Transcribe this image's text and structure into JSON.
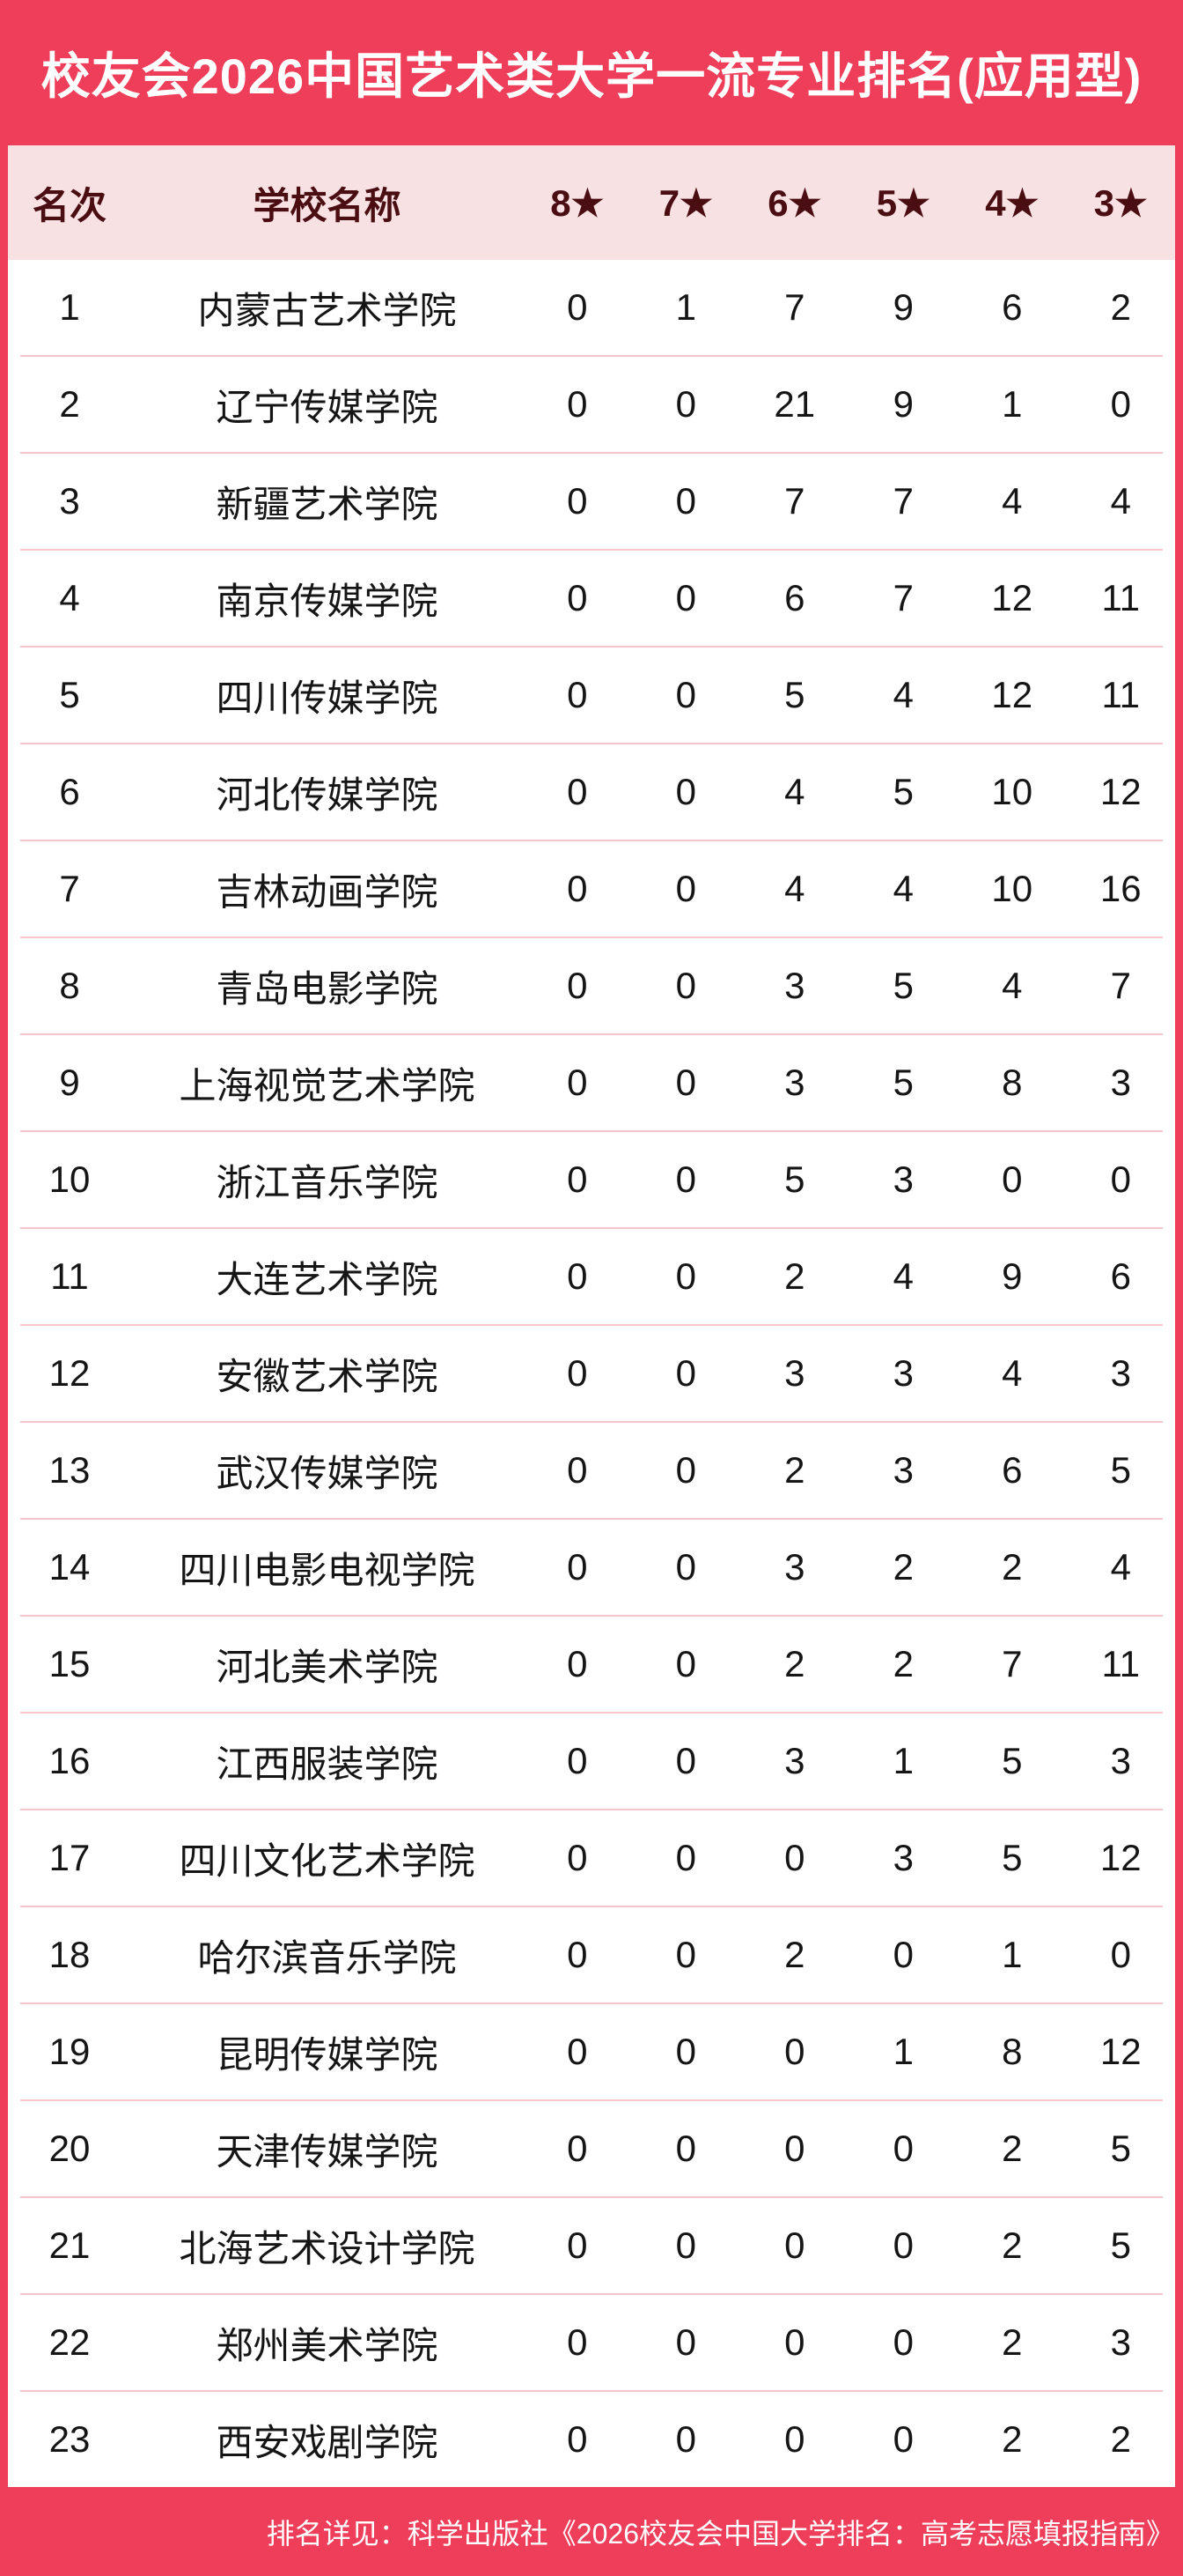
{
  "title": "校友会2026中国艺术类大学一流专业排名(应用型)",
  "colors": {
    "accent_red": "#ee3e5a",
    "header_pink": "#f8e1e3",
    "separator_pink": "#f6c6cd",
    "header_text_maroon": "#4a0d12",
    "body_text": "#151515",
    "title_text": "#ffffff"
  },
  "table": {
    "columns": [
      "名次",
      "学校名称",
      "8★",
      "7★",
      "6★",
      "5★",
      "4★",
      "3★"
    ],
    "rows": [
      {
        "rank": "1",
        "school": "内蒙古艺术学院",
        "stars": [
          "0",
          "1",
          "7",
          "9",
          "6",
          "2"
        ]
      },
      {
        "rank": "2",
        "school": "辽宁传媒学院",
        "stars": [
          "0",
          "0",
          "21",
          "9",
          "1",
          "0"
        ]
      },
      {
        "rank": "3",
        "school": "新疆艺术学院",
        "stars": [
          "0",
          "0",
          "7",
          "7",
          "4",
          "4"
        ]
      },
      {
        "rank": "4",
        "school": "南京传媒学院",
        "stars": [
          "0",
          "0",
          "6",
          "7",
          "12",
          "11"
        ]
      },
      {
        "rank": "5",
        "school": "四川传媒学院",
        "stars": [
          "0",
          "0",
          "5",
          "4",
          "12",
          "11"
        ]
      },
      {
        "rank": "6",
        "school": "河北传媒学院",
        "stars": [
          "0",
          "0",
          "4",
          "5",
          "10",
          "12"
        ]
      },
      {
        "rank": "7",
        "school": "吉林动画学院",
        "stars": [
          "0",
          "0",
          "4",
          "4",
          "10",
          "16"
        ]
      },
      {
        "rank": "8",
        "school": "青岛电影学院",
        "stars": [
          "0",
          "0",
          "3",
          "5",
          "4",
          "7"
        ]
      },
      {
        "rank": "9",
        "school": "上海视觉艺术学院",
        "stars": [
          "0",
          "0",
          "3",
          "5",
          "8",
          "3"
        ]
      },
      {
        "rank": "10",
        "school": "浙江音乐学院",
        "stars": [
          "0",
          "0",
          "5",
          "3",
          "0",
          "0"
        ]
      },
      {
        "rank": "11",
        "school": "大连艺术学院",
        "stars": [
          "0",
          "0",
          "2",
          "4",
          "9",
          "6"
        ]
      },
      {
        "rank": "12",
        "school": "安徽艺术学院",
        "stars": [
          "0",
          "0",
          "3",
          "3",
          "4",
          "3"
        ]
      },
      {
        "rank": "13",
        "school": "武汉传媒学院",
        "stars": [
          "0",
          "0",
          "2",
          "3",
          "6",
          "5"
        ]
      },
      {
        "rank": "14",
        "school": "四川电影电视学院",
        "stars": [
          "0",
          "0",
          "3",
          "2",
          "2",
          "4"
        ]
      },
      {
        "rank": "15",
        "school": "河北美术学院",
        "stars": [
          "0",
          "0",
          "2",
          "2",
          "7",
          "11"
        ]
      },
      {
        "rank": "16",
        "school": "江西服装学院",
        "stars": [
          "0",
          "0",
          "3",
          "1",
          "5",
          "3"
        ]
      },
      {
        "rank": "17",
        "school": "四川文化艺术学院",
        "stars": [
          "0",
          "0",
          "0",
          "3",
          "5",
          "12"
        ]
      },
      {
        "rank": "18",
        "school": "哈尔滨音乐学院",
        "stars": [
          "0",
          "0",
          "2",
          "0",
          "1",
          "0"
        ]
      },
      {
        "rank": "19",
        "school": "昆明传媒学院",
        "stars": [
          "0",
          "0",
          "0",
          "1",
          "8",
          "12"
        ]
      },
      {
        "rank": "20",
        "school": "天津传媒学院",
        "stars": [
          "0",
          "0",
          "0",
          "0",
          "2",
          "5"
        ]
      },
      {
        "rank": "21",
        "school": "北海艺术设计学院",
        "stars": [
          "0",
          "0",
          "0",
          "0",
          "2",
          "5"
        ]
      },
      {
        "rank": "22",
        "school": "郑州美术学院",
        "stars": [
          "0",
          "0",
          "0",
          "0",
          "2",
          "3"
        ]
      },
      {
        "rank": "23",
        "school": "西安戏剧学院",
        "stars": [
          "0",
          "0",
          "0",
          "0",
          "2",
          "2"
        ]
      }
    ]
  },
  "footer": {
    "text": "排名详见：科学出版社《2026校友会中国大学排名：高考志愿填报指南》"
  }
}
